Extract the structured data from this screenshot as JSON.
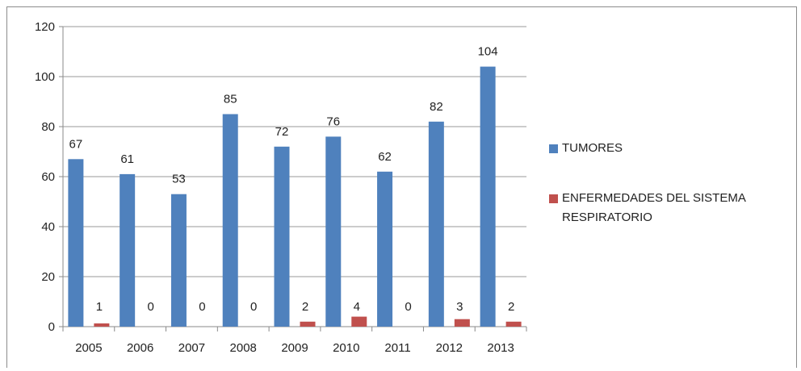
{
  "chart_data": {
    "type": "bar",
    "title": "",
    "xlabel": "",
    "ylabel": "",
    "categories": [
      "2005",
      "2006",
      "2007",
      "2008",
      "2009",
      "2010",
      "2011",
      "2012",
      "2013"
    ],
    "series": [
      {
        "name": "TUMORES",
        "color": "#4f81bd",
        "values": [
          67,
          61,
          53,
          85,
          72,
          76,
          62,
          82,
          104
        ]
      },
      {
        "name": "ENFERMEDADES DEL SISTEMA RESPIRATORIO",
        "color": "#c0504d",
        "values": [
          1,
          0,
          0,
          0,
          2,
          4,
          0,
          3,
          2
        ]
      }
    ],
    "ylim": [
      0,
      120
    ],
    "yticks": [
      0,
      20,
      40,
      60,
      80,
      100,
      120
    ],
    "grid": true,
    "legend_position": "right",
    "data_labels": true
  }
}
